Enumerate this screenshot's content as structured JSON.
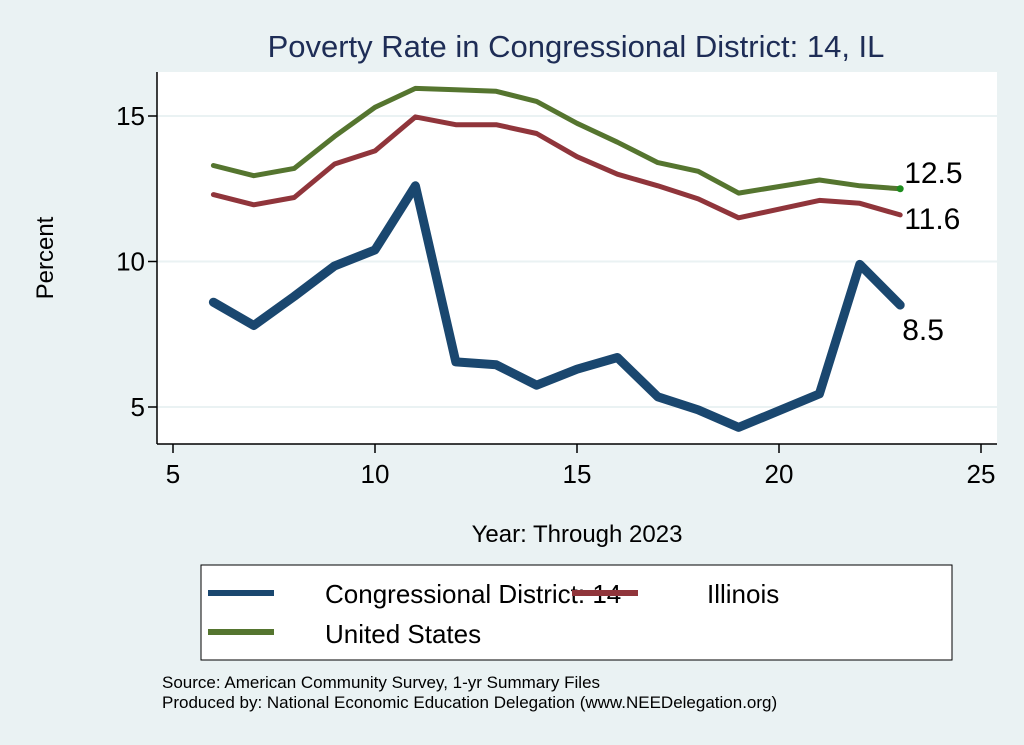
{
  "chart_data": {
    "type": "line",
    "title": "Poverty Rate in Congressional District:  14, IL",
    "xlabel": "Year: Through 2023",
    "ylabel": "Percent",
    "xlim": [
      5,
      25
    ],
    "ylim": [
      3.9,
      16.6
    ],
    "xticks": [
      5,
      10,
      15,
      20,
      25
    ],
    "yticks": [
      5,
      10,
      15
    ],
    "xtick_labels": [
      "5",
      "10",
      "15",
      "20",
      "25"
    ],
    "ytick_labels": [
      "5",
      "10",
      "15"
    ],
    "grid": "horizontal",
    "legend_position": "bottom",
    "series": [
      {
        "name": "Congressional District:  14",
        "color": "#1A476F",
        "x": [
          6,
          7,
          8,
          9,
          10,
          11,
          12,
          13,
          14,
          15,
          16,
          17,
          18,
          19,
          21,
          22,
          23
        ],
        "values": [
          8.6,
          7.8,
          8.8,
          9.85,
          10.4,
          12.6,
          6.55,
          6.45,
          5.75,
          6.3,
          6.7,
          5.35,
          4.9,
          4.3,
          5.45,
          9.9,
          8.5
        ],
        "end_label": "8.5"
      },
      {
        "name": "Illinois",
        "color": "#90353B",
        "x": [
          6,
          7,
          8,
          9,
          10,
          11,
          12,
          13,
          14,
          15,
          16,
          17,
          18,
          19,
          21,
          22,
          23
        ],
        "values": [
          12.3,
          11.95,
          12.2,
          13.35,
          13.8,
          14.97,
          14.7,
          14.7,
          14.4,
          13.6,
          13.0,
          12.6,
          12.15,
          11.5,
          12.1,
          12.0,
          11.6
        ],
        "end_label": "11.6"
      },
      {
        "name": "United States",
        "color": "#55752F",
        "x": [
          6,
          7,
          8,
          9,
          10,
          11,
          12,
          13,
          14,
          15,
          16,
          17,
          18,
          19,
          21,
          22,
          23
        ],
        "values": [
          13.3,
          12.95,
          13.2,
          14.3,
          15.3,
          15.95,
          15.9,
          15.85,
          15.5,
          14.75,
          14.1,
          13.4,
          13.1,
          12.35,
          12.8,
          12.6,
          12.5
        ],
        "end_label": "12.5"
      }
    ],
    "legend": [
      {
        "name": "Congressional District:  14",
        "color": "#1A476F"
      },
      {
        "name": "Illinois",
        "color": "#90353B"
      },
      {
        "name": "United States",
        "color": "#55752F"
      }
    ],
    "notes": [
      "Source: American Community Survey, 1-yr Summary Files",
      "Produced by: National Economic Education Delegation (www.NEEDelegation.org)"
    ]
  },
  "colors": {
    "background": "#EAF2F3",
    "plot_background": "#FFFFFF",
    "gridline": "#EAF2F3",
    "title": "#1E2D56"
  }
}
